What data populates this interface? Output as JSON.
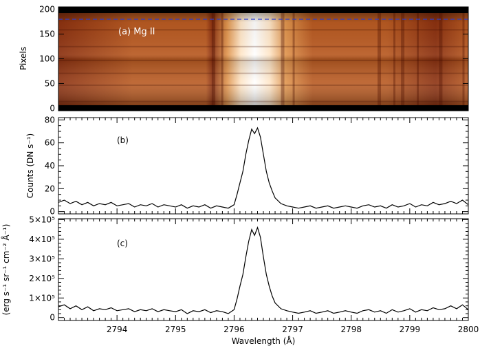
{
  "chart_data": [
    {
      "type": "heatmap",
      "panel_label": "(a) Mg II",
      "ylabel": "Pixels",
      "xlim": [
        2793.0,
        2800.0
      ],
      "ylim": [
        -5,
        205
      ],
      "yticks": [
        0,
        50,
        100,
        150,
        200
      ],
      "reference_line_y": 180,
      "colormap": [
        "#5a1500",
        "#8b3110",
        "#b85a22",
        "#e0954e",
        "#ffe6c8",
        "#ffffff"
      ],
      "bright_line_center": 2796.35
    },
    {
      "type": "line",
      "panel_label": "(b)",
      "ylabel": "Counts (DN s⁻¹)",
      "xlim": [
        2793.0,
        2800.0
      ],
      "ylim": [
        -2,
        82
      ],
      "yticks": [
        0,
        20,
        40,
        60,
        80
      ],
      "x": [
        2793.0,
        2793.1,
        2793.2,
        2793.3,
        2793.4,
        2793.5,
        2793.6,
        2793.7,
        2793.8,
        2793.9,
        2794.0,
        2794.1,
        2794.2,
        2794.3,
        2794.4,
        2794.5,
        2794.6,
        2794.7,
        2794.8,
        2794.9,
        2795.0,
        2795.1,
        2795.2,
        2795.3,
        2795.4,
        2795.5,
        2795.6,
        2795.7,
        2795.8,
        2795.9,
        2796.0,
        2796.05,
        2796.1,
        2796.15,
        2796.2,
        2796.25,
        2796.3,
        2796.35,
        2796.4,
        2796.45,
        2796.5,
        2796.55,
        2796.6,
        2796.65,
        2796.7,
        2796.8,
        2796.9,
        2797.0,
        2797.1,
        2797.2,
        2797.3,
        2797.4,
        2797.5,
        2797.6,
        2797.7,
        2797.8,
        2797.9,
        2798.0,
        2798.1,
        2798.2,
        2798.3,
        2798.4,
        2798.5,
        2798.6,
        2798.7,
        2798.8,
        2798.9,
        2799.0,
        2799.1,
        2799.2,
        2799.3,
        2799.4,
        2799.5,
        2799.6,
        2799.7,
        2799.8,
        2799.9,
        2800.0
      ],
      "y": [
        8,
        10,
        7,
        9,
        6,
        8,
        5,
        7,
        6,
        8,
        5,
        6,
        7,
        4,
        6,
        5,
        7,
        4,
        6,
        5,
        4,
        6,
        3,
        5,
        4,
        6,
        3,
        5,
        4,
        3,
        6,
        15,
        25,
        35,
        50,
        62,
        72,
        68,
        73,
        65,
        50,
        35,
        25,
        18,
        12,
        7,
        5,
        4,
        3,
        4,
        5,
        3,
        4,
        5,
        3,
        4,
        5,
        4,
        3,
        5,
        6,
        4,
        5,
        3,
        6,
        4,
        5,
        7,
        4,
        6,
        5,
        8,
        6,
        7,
        9,
        7,
        10,
        6
      ]
    },
    {
      "type": "line",
      "panel_label": "(c)",
      "ylabel": "(erg s⁻¹ sr⁻¹ cm⁻² Å⁻¹)",
      "xlabel": "Wavelength (Å)",
      "xlim": [
        2793.0,
        2800.0
      ],
      "xticks": [
        2794,
        2795,
        2796,
        2797,
        2798,
        2799,
        2800
      ],
      "ylim": [
        -15000,
        505000
      ],
      "ytick_values": [
        0,
        100000,
        200000,
        300000,
        400000,
        500000
      ],
      "ytick_labels": [
        "0",
        "1×10⁵",
        "2×10⁵",
        "3×10⁵",
        "4×10⁵",
        "5×10⁵"
      ],
      "x": [
        2793.0,
        2793.1,
        2793.2,
        2793.3,
        2793.4,
        2793.5,
        2793.6,
        2793.7,
        2793.8,
        2793.9,
        2794.0,
        2794.1,
        2794.2,
        2794.3,
        2794.4,
        2794.5,
        2794.6,
        2794.7,
        2794.8,
        2794.9,
        2795.0,
        2795.1,
        2795.2,
        2795.3,
        2795.4,
        2795.5,
        2795.6,
        2795.7,
        2795.8,
        2795.9,
        2796.0,
        2796.05,
        2796.1,
        2796.15,
        2796.2,
        2796.25,
        2796.3,
        2796.35,
        2796.4,
        2796.45,
        2796.5,
        2796.55,
        2796.6,
        2796.65,
        2796.7,
        2796.8,
        2796.9,
        2797.0,
        2797.1,
        2797.2,
        2797.3,
        2797.4,
        2797.5,
        2797.6,
        2797.7,
        2797.8,
        2797.9,
        2798.0,
        2798.1,
        2798.2,
        2798.3,
        2798.4,
        2798.5,
        2798.6,
        2798.7,
        2798.8,
        2798.9,
        2799.0,
        2799.1,
        2799.2,
        2799.3,
        2799.4,
        2799.5,
        2799.6,
        2799.7,
        2799.8,
        2799.9,
        2800.0
      ],
      "y": [
        55000,
        65000,
        45000,
        60000,
        40000,
        55000,
        35000,
        45000,
        40000,
        50000,
        35000,
        40000,
        45000,
        30000,
        40000,
        35000,
        45000,
        30000,
        40000,
        35000,
        30000,
        40000,
        20000,
        35000,
        30000,
        40000,
        25000,
        35000,
        30000,
        20000,
        40000,
        95000,
        160000,
        220000,
        310000,
        390000,
        450000,
        420000,
        460000,
        410000,
        310000,
        220000,
        160000,
        110000,
        75000,
        45000,
        35000,
        28000,
        22000,
        28000,
        35000,
        22000,
        28000,
        35000,
        22000,
        28000,
        35000,
        28000,
        22000,
        35000,
        40000,
        28000,
        35000,
        22000,
        40000,
        28000,
        35000,
        45000,
        28000,
        40000,
        35000,
        50000,
        40000,
        45000,
        60000,
        45000,
        65000,
        40000
      ]
    }
  ]
}
